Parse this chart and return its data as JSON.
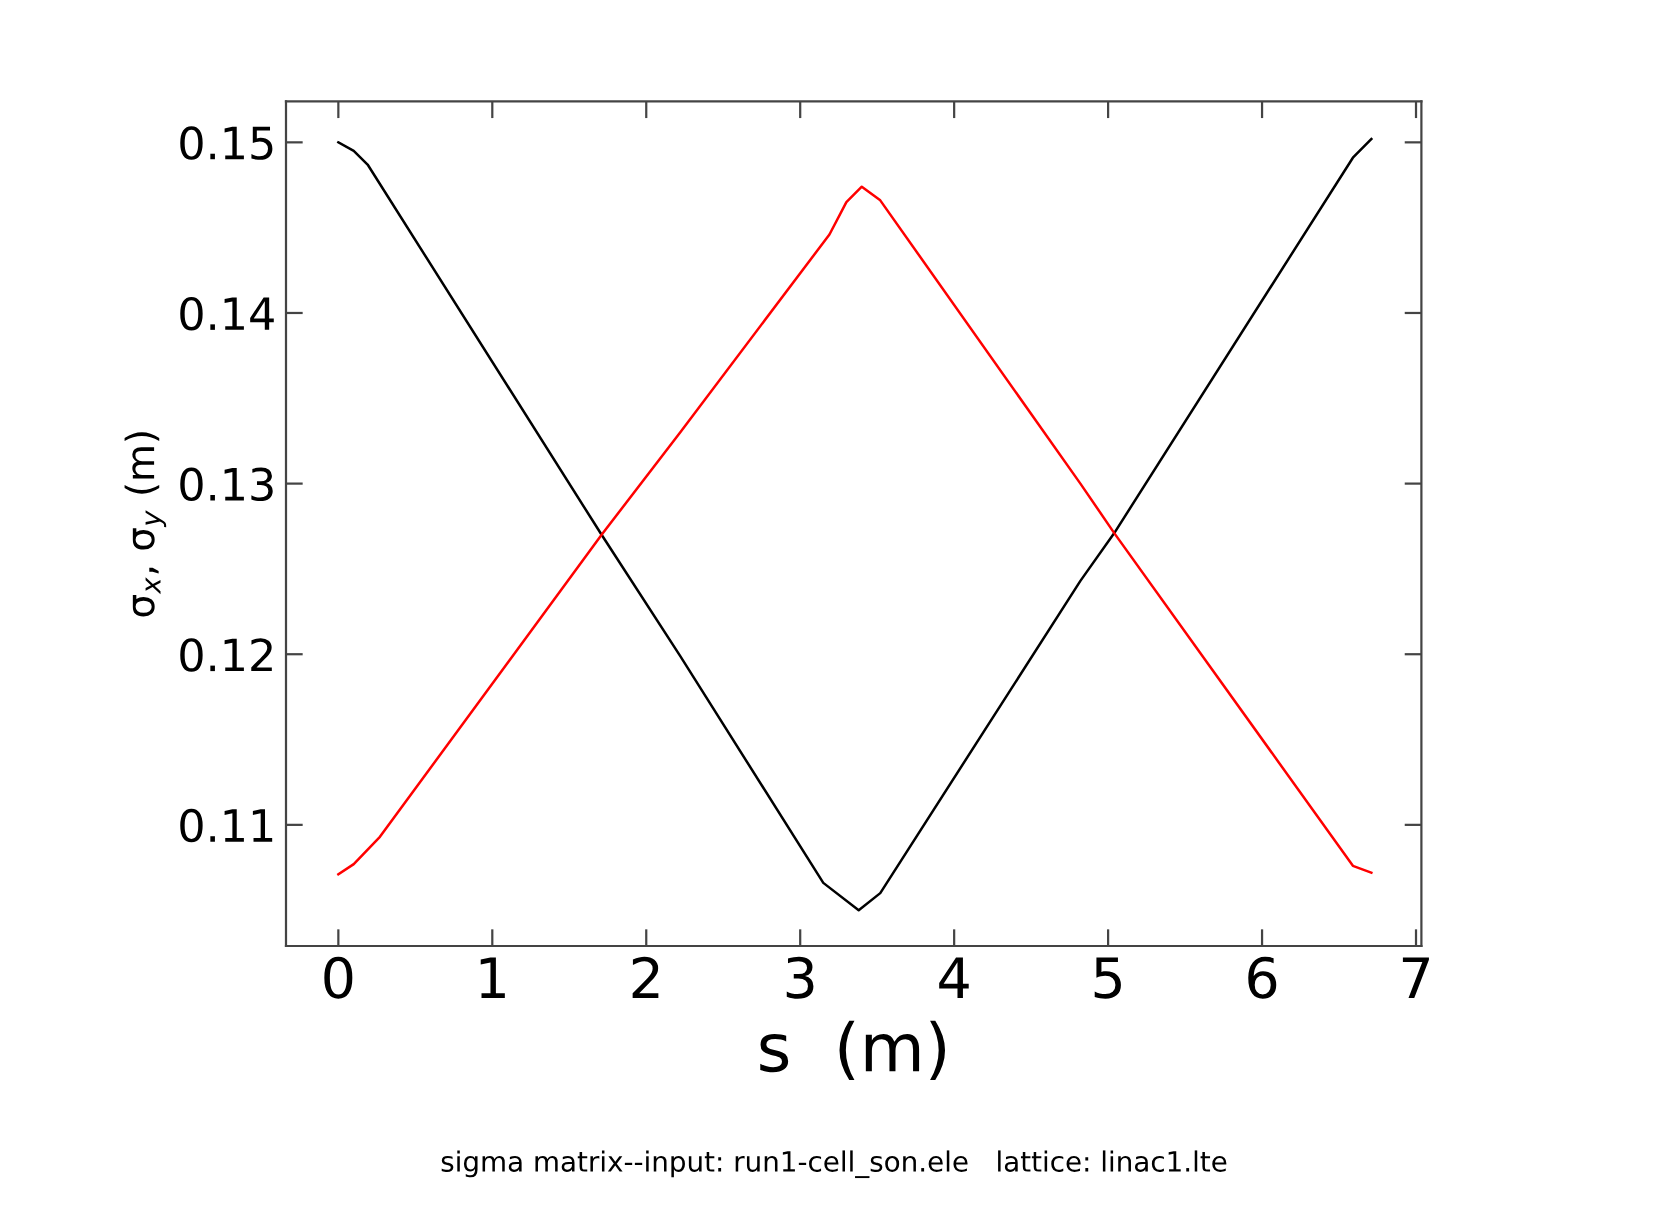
{
  "chart_data": {
    "type": "line",
    "xlabel": "s  (m)",
    "ylabel": "σ$_{x}$, σ$_{y}$ (m)",
    "annotations": [
      "sigma matrix--input: run1-cell_son.ele   lattice: linac1.lte"
    ],
    "xlim": [
      -0.34,
      7.035
    ],
    "ylim": [
      0.1029,
      0.1524
    ],
    "xticks": [
      0,
      1,
      2,
      3,
      4,
      5,
      6,
      7
    ],
    "yticks": [
      0.11,
      0.12,
      0.13,
      0.14,
      0.15
    ],
    "grid": false,
    "legend": false,
    "marker": "none",
    "line_style": "solid",
    "series": [
      {
        "color": "#000000",
        "x": [
          0,
          0.1,
          0.19,
          1.71,
          2.22,
          3.15,
          3.38,
          3.52,
          4.82,
          5.04,
          6.59,
          6.71
        ],
        "values": [
          0.15,
          0.1495,
          0.1487,
          0.127,
          0.1199,
          0.1066,
          0.105,
          0.106,
          0.1243,
          0.1271,
          0.1491,
          0.1502
        ]
      },
      {
        "color": "#ff0000",
        "x": [
          0,
          0.1,
          0.27,
          1.71,
          2.22,
          3.19,
          3.3,
          3.4,
          3.52,
          4.82,
          5.04,
          6.59,
          6.71
        ],
        "values": [
          0.1071,
          0.1077,
          0.1093,
          0.127,
          0.133,
          0.1446,
          0.1465,
          0.1474,
          0.1466,
          0.13,
          0.1271,
          0.1076,
          0.1072
        ]
      }
    ]
  }
}
